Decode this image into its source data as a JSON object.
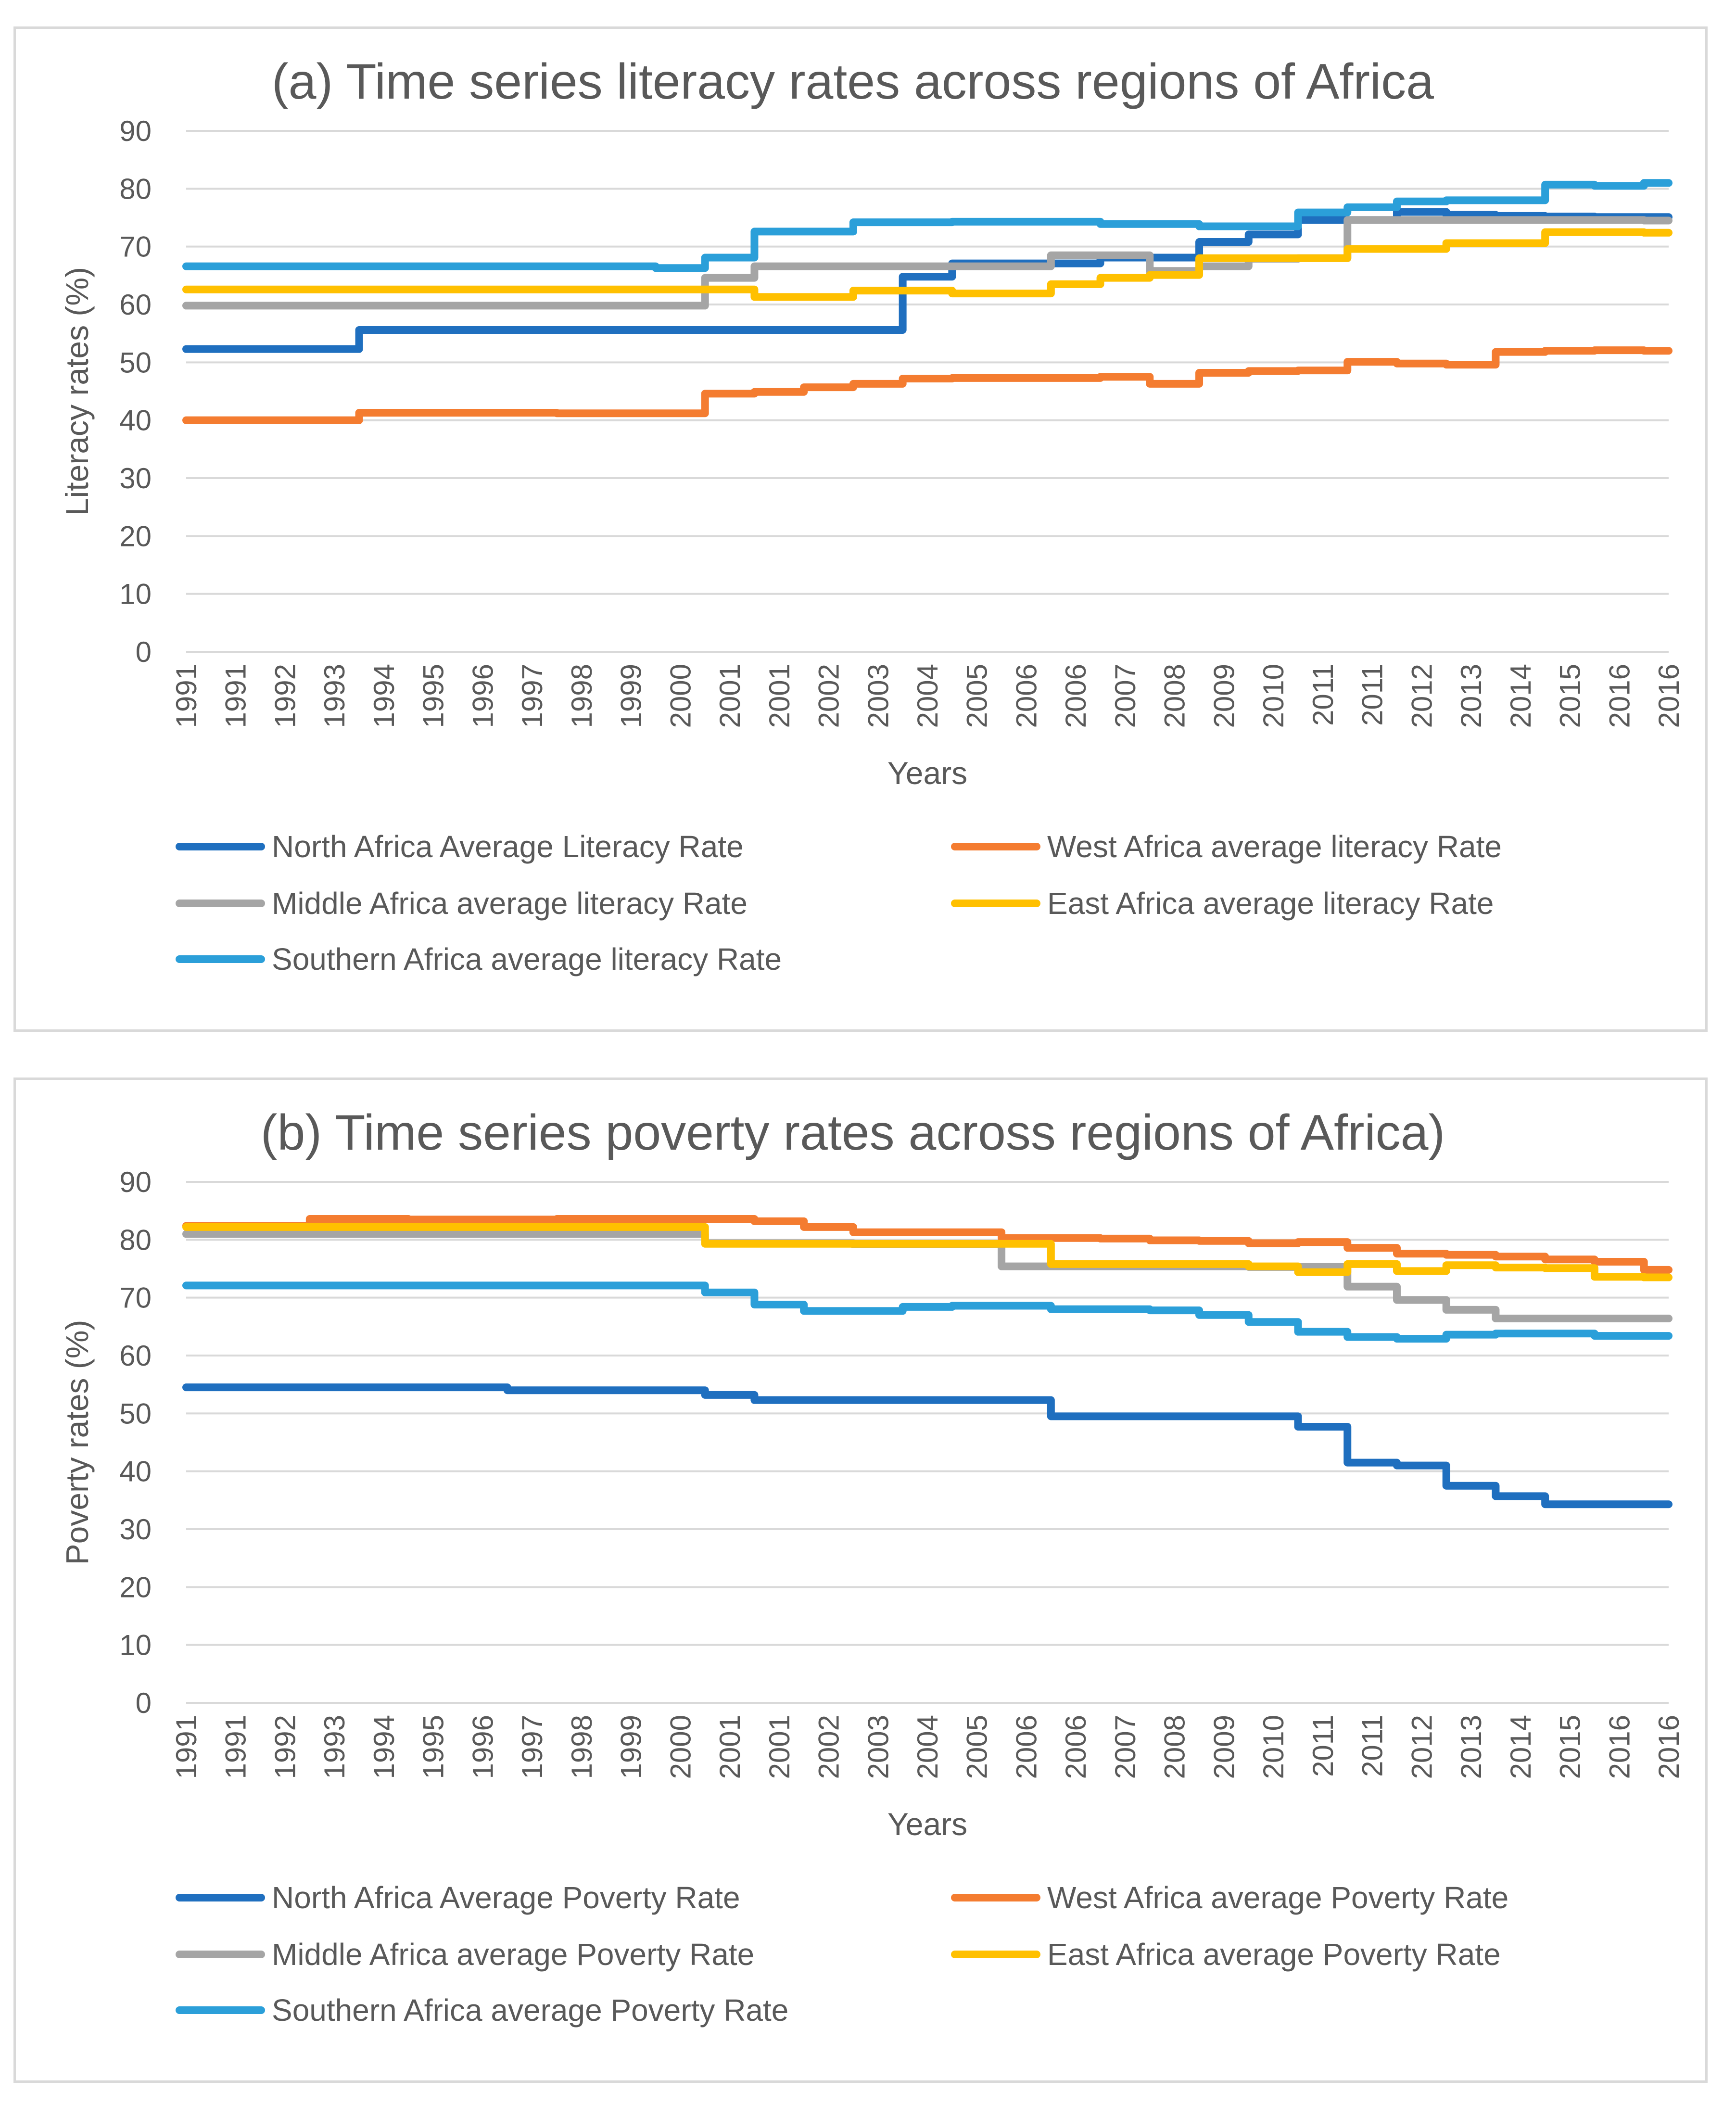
{
  "colors": {
    "north": "#1f6fbf",
    "west": "#f47c30",
    "middle": "#a5a5a5",
    "east": "#ffc000",
    "southern": "#2b9fd9"
  },
  "chart_data": [
    {
      "type": "line",
      "title": "(a) Time series literacy rates across regions of Africa",
      "xlabel": "Years",
      "ylabel": "Literacy rates (%)",
      "ylim": [
        0,
        90
      ],
      "yticks": [
        0,
        10,
        20,
        30,
        40,
        50,
        60,
        70,
        80,
        90
      ],
      "grid": true,
      "legend_position": "bottom",
      "categories": [
        "1991",
        "1991",
        "1992",
        "1993",
        "1994",
        "1995",
        "1996",
        "1997",
        "1998",
        "1999",
        "2000",
        "2001",
        "2001",
        "2002",
        "2003",
        "2004",
        "2005",
        "2006",
        "2006",
        "2007",
        "2008",
        "2009",
        "2010",
        "2011",
        "2011",
        "2012",
        "2013",
        "2014",
        "2015",
        "2016",
        "2016"
      ],
      "series": [
        {
          "name": "North Africa Average Literacy Rate",
          "color_key": "north",
          "values": [
            52.3,
            52.3,
            52.3,
            52.3,
            55.6,
            55.6,
            55.6,
            55.6,
            55.6,
            55.6,
            55.6,
            55.6,
            55.6,
            55.6,
            55.6,
            64.8,
            67.1,
            67.1,
            67.1,
            68.1,
            68.1,
            70.8,
            72.1,
            74.6,
            74.6,
            76.0,
            75.5,
            75.3,
            75.2,
            75.1,
            75.1
          ]
        },
        {
          "name": "West Africa average literacy Rate",
          "color_key": "west",
          "values": [
            40.0,
            40.0,
            40.0,
            40.0,
            41.3,
            41.3,
            41.3,
            41.3,
            41.2,
            41.2,
            41.2,
            44.6,
            44.9,
            45.7,
            46.3,
            47.2,
            47.3,
            47.3,
            47.3,
            47.5,
            46.3,
            48.2,
            48.5,
            48.6,
            50.1,
            49.8,
            49.6,
            51.8,
            52.0,
            52.1,
            52.0
          ]
        },
        {
          "name": "Middle Africa average literacy Rate",
          "color_key": "middle",
          "values": [
            59.8,
            59.8,
            59.8,
            59.8,
            59.8,
            59.8,
            59.8,
            59.8,
            59.8,
            59.8,
            59.8,
            64.6,
            66.6,
            66.6,
            66.6,
            66.6,
            66.6,
            66.6,
            68.5,
            68.5,
            65.8,
            66.6,
            67.9,
            68.0,
            74.6,
            74.6,
            74.6,
            74.6,
            74.6,
            74.6,
            74.5
          ]
        },
        {
          "name": "East Africa average literacy Rate",
          "color_key": "east",
          "values": [
            62.6,
            62.6,
            62.6,
            62.6,
            62.6,
            62.6,
            62.6,
            62.6,
            62.6,
            62.6,
            62.6,
            62.6,
            61.3,
            61.3,
            62.4,
            62.4,
            61.9,
            61.9,
            63.5,
            64.6,
            65.1,
            68.0,
            68.0,
            68.0,
            69.6,
            69.6,
            70.6,
            70.6,
            72.5,
            72.5,
            72.4
          ]
        },
        {
          "name": "Southern Africa average literacy Rate",
          "color_key": "southern",
          "values": [
            66.6,
            66.6,
            66.6,
            66.6,
            66.6,
            66.6,
            66.6,
            66.6,
            66.6,
            66.6,
            66.3,
            68.1,
            72.6,
            72.6,
            74.2,
            74.2,
            74.3,
            74.3,
            74.3,
            73.9,
            73.9,
            73.5,
            73.5,
            75.9,
            76.8,
            77.8,
            78.0,
            78.0,
            80.7,
            80.5,
            81.0
          ]
        }
      ],
      "legend": [
        [
          "North Africa Average Literacy Rate",
          "West Africa average literacy Rate"
        ],
        [
          "Middle Africa average literacy Rate",
          "East Africa average literacy Rate"
        ],
        [
          "Southern Africa average literacy Rate"
        ]
      ]
    },
    {
      "type": "line",
      "title": "(b) Time series poverty rates across regions of Africa)",
      "xlabel": "Years",
      "ylabel": "Poverty rates (%)",
      "ylim": [
        0,
        90
      ],
      "yticks": [
        0,
        10,
        20,
        30,
        40,
        50,
        60,
        70,
        80,
        90
      ],
      "grid": true,
      "legend_position": "bottom",
      "categories": [
        "1991",
        "1991",
        "1992",
        "1993",
        "1994",
        "1995",
        "1996",
        "1997",
        "1998",
        "1999",
        "2000",
        "2001",
        "2001",
        "2002",
        "2003",
        "2004",
        "2005",
        "2006",
        "2006",
        "2007",
        "2008",
        "2009",
        "2010",
        "2011",
        "2011",
        "2012",
        "2013",
        "2014",
        "2015",
        "2016",
        "2016"
      ],
      "series": [
        {
          "name": "North Africa Average Poverty Rate",
          "color_key": "north",
          "values": [
            54.5,
            54.5,
            54.5,
            54.5,
            54.5,
            54.5,
            54.5,
            54.0,
            54.0,
            54.0,
            54.0,
            53.2,
            52.3,
            52.3,
            52.3,
            52.3,
            52.3,
            52.3,
            49.5,
            49.5,
            49.5,
            49.5,
            49.5,
            47.7,
            41.5,
            41.0,
            37.5,
            35.7,
            34.3,
            34.3,
            34.3
          ]
        },
        {
          "name": "West Africa average Poverty Rate",
          "color_key": "west",
          "values": [
            82.4,
            82.4,
            82.4,
            83.6,
            83.6,
            83.5,
            83.5,
            83.5,
            83.6,
            83.6,
            83.6,
            83.6,
            83.2,
            82.2,
            81.3,
            81.3,
            81.3,
            80.3,
            80.3,
            80.2,
            79.9,
            79.8,
            79.4,
            79.6,
            78.6,
            77.6,
            77.4,
            77.1,
            76.6,
            76.2,
            74.8
          ]
        },
        {
          "name": "Middle Africa average Poverty Rate",
          "color_key": "middle",
          "values": [
            81.0,
            81.0,
            81.0,
            81.0,
            81.0,
            81.0,
            81.0,
            81.0,
            81.0,
            81.0,
            81.0,
            79.4,
            79.4,
            79.4,
            79.2,
            79.2,
            79.2,
            75.4,
            75.4,
            75.4,
            75.4,
            75.4,
            75.3,
            75.3,
            71.9,
            69.6,
            67.9,
            66.4,
            66.4,
            66.4,
            66.4
          ]
        },
        {
          "name": "East Africa average Poverty Rate",
          "color_key": "east",
          "values": [
            82.2,
            82.2,
            82.2,
            82.2,
            82.2,
            82.2,
            82.2,
            82.2,
            82.2,
            82.2,
            82.2,
            79.3,
            79.3,
            79.3,
            79.3,
            79.3,
            79.3,
            79.3,
            75.8,
            75.8,
            75.8,
            75.8,
            75.4,
            74.4,
            75.8,
            74.6,
            75.6,
            75.2,
            75.1,
            73.6,
            73.5
          ]
        },
        {
          "name": "Southern Africa average Poverty Rate",
          "color_key": "southern",
          "values": [
            72.1,
            72.1,
            72.1,
            72.1,
            72.1,
            72.1,
            72.1,
            72.1,
            72.1,
            72.1,
            72.1,
            70.9,
            68.8,
            67.7,
            67.7,
            68.4,
            68.6,
            68.6,
            68.0,
            68.0,
            67.8,
            67.0,
            65.8,
            64.1,
            63.2,
            62.9,
            63.6,
            63.8,
            63.8,
            63.4,
            63.4
          ]
        }
      ],
      "legend": [
        [
          "North Africa Average Poverty Rate",
          "West Africa average Poverty Rate"
        ],
        [
          "Middle Africa average Poverty Rate",
          "East Africa average Poverty Rate"
        ],
        [
          "Southern Africa average Poverty Rate"
        ]
      ]
    }
  ]
}
